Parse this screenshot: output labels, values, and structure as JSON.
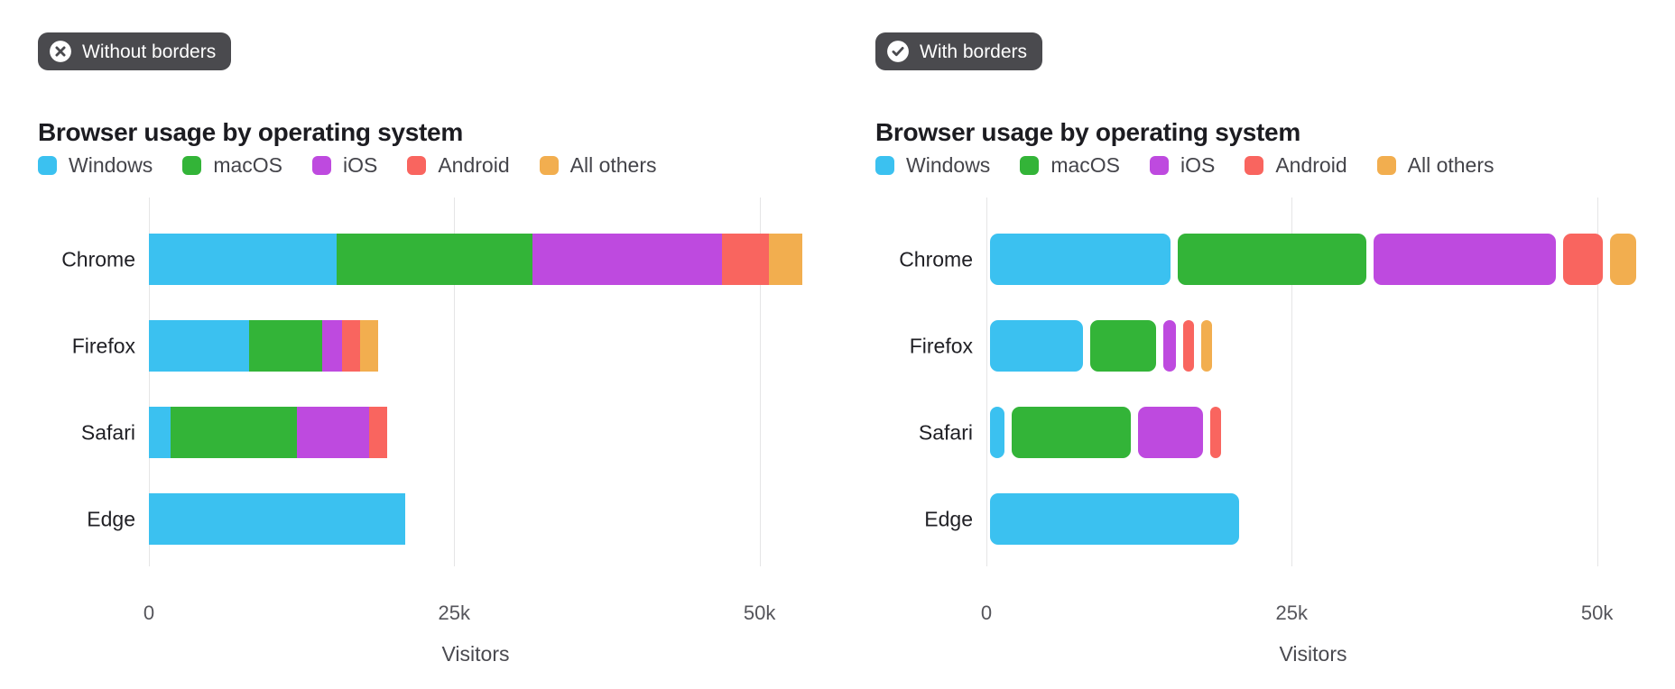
{
  "panels": [
    {
      "badge": {
        "label": "Without borders",
        "icon": "x-circle-icon"
      },
      "title": "Browser usage by operating system",
      "bordered": false
    },
    {
      "badge": {
        "label": "With borders",
        "icon": "check-circle-icon"
      },
      "title": "Browser usage by operating system",
      "bordered": true
    }
  ],
  "legend": [
    {
      "label": "Windows",
      "color": "#3bc1f0"
    },
    {
      "label": "macOS",
      "color": "#33b438"
    },
    {
      "label": "iOS",
      "color": "#be4adf"
    },
    {
      "label": "Android",
      "color": "#f9655f"
    },
    {
      "label": "All others",
      "color": "#f2ae4f"
    }
  ],
  "chart_data": {
    "type": "bar",
    "orientation": "horizontal",
    "stacked": true,
    "title": "Browser usage by operating system",
    "categories": [
      "Chrome",
      "Firefox",
      "Safari",
      "Edge"
    ],
    "series": [
      {
        "name": "Windows",
        "color": "#3bc1f0",
        "values": [
          15400,
          8200,
          1800,
          21000
        ]
      },
      {
        "name": "macOS",
        "color": "#33b438",
        "values": [
          16000,
          6000,
          10300,
          0
        ]
      },
      {
        "name": "iOS",
        "color": "#be4adf",
        "values": [
          15500,
          1600,
          5900,
          0
        ]
      },
      {
        "name": "Android",
        "color": "#f9655f",
        "values": [
          3900,
          1500,
          1500,
          0
        ]
      },
      {
        "name": "All others",
        "color": "#f2ae4f",
        "values": [
          2700,
          1500,
          0,
          0
        ]
      }
    ],
    "xlabel": "Visitors",
    "ylabel": "",
    "x_ticks": [
      "0",
      "25k",
      "50k"
    ],
    "x_tick_values": [
      0,
      25000,
      50000
    ],
    "xlim": [
      0,
      53500
    ],
    "grid": true,
    "legend_position": "top"
  },
  "colors": {
    "badge_background": "#4a4a4e",
    "gridline": "#e5e5e6",
    "title_text": "#1c1c21",
    "axis_text": "#55555b"
  }
}
